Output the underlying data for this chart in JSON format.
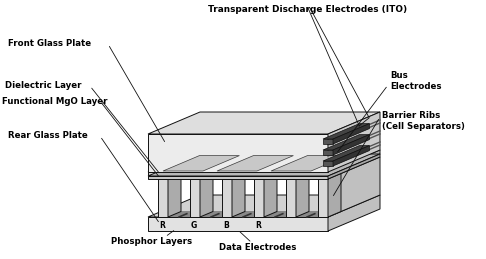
{
  "background_color": "#ffffff",
  "fig_width": 4.86,
  "fig_height": 2.59,
  "dpi": 100,
  "labels": {
    "top_label": "Transparent Discharge Electrodes (ITO)",
    "front_glass": "Front Glass Plate",
    "dielectric": "Dielectric Layer",
    "functional": "Functional MgO Layer",
    "rear_glass": "Rear Glass Plate",
    "bus": "Bus\nElectrodes",
    "barrier": "Barrier Ribs\n(Cell Separators)",
    "phosphor": "Phosphor Layers",
    "data": "Data Electrodes",
    "rgb": "R  G  B  R"
  },
  "line_color": "#111111",
  "text_color": "#000000",
  "gray_light": "#e0e0e0",
  "gray_mid": "#c0c0c0",
  "gray_dark": "#888888",
  "gray_white": "#f5f5f5"
}
